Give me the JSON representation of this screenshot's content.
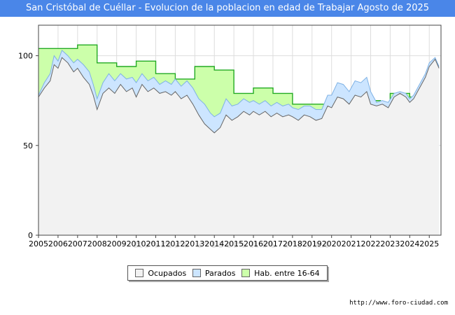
{
  "chart_data": {
    "type": "area",
    "title": "San Cristóbal de Cuéllar - Evolucion de la poblacion en edad de Trabajar Agosto de 2025",
    "xlabel": "",
    "ylabel": "",
    "x_ticks": [
      "2005",
      "2006",
      "2007",
      "2008",
      "2009",
      "2010",
      "2011",
      "2012",
      "2013",
      "2014",
      "2015",
      "2016",
      "2017",
      "2018",
      "2019",
      "2020",
      "2021",
      "2022",
      "2023",
      "2024",
      "2025"
    ],
    "y_ticks": [
      0,
      50,
      100
    ],
    "xlim": [
      2005,
      2025.6
    ],
    "ylim": [
      0,
      117
    ],
    "grid": true,
    "legend_position": "bottom-center",
    "series": [
      {
        "name": "Hab. entre 16-64",
        "style": "step",
        "color": "#ccffaa",
        "points": [
          [
            2005.0,
            104
          ],
          [
            2006.0,
            104
          ],
          [
            2007.0,
            106
          ],
          [
            2008.0,
            96
          ],
          [
            2009.0,
            94
          ],
          [
            2010.0,
            97
          ],
          [
            2011.0,
            90
          ],
          [
            2012.0,
            87
          ],
          [
            2013.0,
            94
          ],
          [
            2014.0,
            92
          ],
          [
            2015.0,
            79
          ],
          [
            2016.0,
            82
          ],
          [
            2017.0,
            79
          ],
          [
            2018.0,
            73
          ],
          [
            2019.0,
            73
          ],
          [
            2020.0,
            73
          ],
          [
            2021.0,
            73
          ],
          [
            2022.0,
            75
          ],
          [
            2022.5,
            74
          ],
          [
            2023.0,
            79
          ],
          [
            2024.0,
            77
          ],
          [
            2024.3,
            77
          ]
        ]
      },
      {
        "name": "Parados",
        "style": "line",
        "color": "#cce5ff",
        "points": [
          [
            2005.0,
            78
          ],
          [
            2005.3,
            85
          ],
          [
            2005.6,
            90
          ],
          [
            2005.8,
            100
          ],
          [
            2006.0,
            97
          ],
          [
            2006.2,
            103
          ],
          [
            2006.5,
            100
          ],
          [
            2006.8,
            96
          ],
          [
            2007.0,
            98
          ],
          [
            2007.3,
            95
          ],
          [
            2007.6,
            91
          ],
          [
            2007.8,
            84
          ],
          [
            2008.0,
            76
          ],
          [
            2008.3,
            85
          ],
          [
            2008.6,
            90
          ],
          [
            2008.9,
            86
          ],
          [
            2009.2,
            90
          ],
          [
            2009.5,
            87
          ],
          [
            2009.8,
            88
          ],
          [
            2010.0,
            85
          ],
          [
            2010.3,
            90
          ],
          [
            2010.6,
            86
          ],
          [
            2010.9,
            88
          ],
          [
            2011.2,
            84
          ],
          [
            2011.5,
            86
          ],
          [
            2011.8,
            84
          ],
          [
            2012.0,
            87
          ],
          [
            2012.3,
            83
          ],
          [
            2012.6,
            86
          ],
          [
            2012.9,
            82
          ],
          [
            2013.2,
            76
          ],
          [
            2013.5,
            73
          ],
          [
            2013.8,
            68
          ],
          [
            2014.0,
            66
          ],
          [
            2014.3,
            68
          ],
          [
            2014.6,
            76
          ],
          [
            2014.9,
            72
          ],
          [
            2015.2,
            73
          ],
          [
            2015.5,
            76
          ],
          [
            2015.8,
            74
          ],
          [
            2016.0,
            75
          ],
          [
            2016.3,
            73
          ],
          [
            2016.6,
            75
          ],
          [
            2016.9,
            72
          ],
          [
            2017.2,
            74
          ],
          [
            2017.5,
            72
          ],
          [
            2017.8,
            73
          ],
          [
            2018.0,
            71
          ],
          [
            2018.3,
            70
          ],
          [
            2018.6,
            72
          ],
          [
            2018.9,
            72
          ],
          [
            2019.2,
            70
          ],
          [
            2019.5,
            70
          ],
          [
            2019.8,
            78
          ],
          [
            2020.0,
            78
          ],
          [
            2020.3,
            85
          ],
          [
            2020.6,
            84
          ],
          [
            2020.9,
            80
          ],
          [
            2021.2,
            86
          ],
          [
            2021.5,
            85
          ],
          [
            2021.8,
            88
          ],
          [
            2022.0,
            80
          ],
          [
            2022.3,
            74
          ],
          [
            2022.6,
            75
          ],
          [
            2022.9,
            74
          ],
          [
            2023.2,
            79
          ],
          [
            2023.5,
            80
          ],
          [
            2023.8,
            79
          ],
          [
            2024.0,
            76
          ],
          [
            2024.2,
            78
          ],
          [
            2024.5,
            84
          ],
          [
            2024.8,
            90
          ],
          [
            2025.0,
            96
          ],
          [
            2025.3,
            99
          ],
          [
            2025.5,
            94
          ]
        ]
      },
      {
        "name": "Ocupados",
        "style": "line",
        "color": "#f2f2f2",
        "points": [
          [
            2005.0,
            77
          ],
          [
            2005.3,
            82
          ],
          [
            2005.6,
            86
          ],
          [
            2005.8,
            95
          ],
          [
            2006.0,
            93
          ],
          [
            2006.2,
            99
          ],
          [
            2006.5,
            96
          ],
          [
            2006.8,
            91
          ],
          [
            2007.0,
            93
          ],
          [
            2007.3,
            88
          ],
          [
            2007.6,
            84
          ],
          [
            2007.8,
            78
          ],
          [
            2008.0,
            70
          ],
          [
            2008.3,
            79
          ],
          [
            2008.6,
            82
          ],
          [
            2008.9,
            79
          ],
          [
            2009.2,
            84
          ],
          [
            2009.5,
            80
          ],
          [
            2009.8,
            82
          ],
          [
            2010.0,
            77
          ],
          [
            2010.3,
            84
          ],
          [
            2010.6,
            80
          ],
          [
            2010.9,
            82
          ],
          [
            2011.2,
            79
          ],
          [
            2011.5,
            80
          ],
          [
            2011.8,
            78
          ],
          [
            2012.0,
            80
          ],
          [
            2012.3,
            76
          ],
          [
            2012.6,
            78
          ],
          [
            2012.9,
            73
          ],
          [
            2013.2,
            67
          ],
          [
            2013.5,
            62
          ],
          [
            2013.8,
            59
          ],
          [
            2014.0,
            57
          ],
          [
            2014.3,
            60
          ],
          [
            2014.6,
            67
          ],
          [
            2014.9,
            64
          ],
          [
            2015.2,
            66
          ],
          [
            2015.5,
            69
          ],
          [
            2015.8,
            67
          ],
          [
            2016.0,
            69
          ],
          [
            2016.3,
            67
          ],
          [
            2016.6,
            69
          ],
          [
            2016.9,
            66
          ],
          [
            2017.2,
            68
          ],
          [
            2017.5,
            66
          ],
          [
            2017.8,
            67
          ],
          [
            2018.0,
            66
          ],
          [
            2018.3,
            64
          ],
          [
            2018.6,
            67
          ],
          [
            2018.9,
            66
          ],
          [
            2019.2,
            64
          ],
          [
            2019.5,
            65
          ],
          [
            2019.8,
            72
          ],
          [
            2020.0,
            71
          ],
          [
            2020.3,
            77
          ],
          [
            2020.6,
            76
          ],
          [
            2020.9,
            73
          ],
          [
            2021.2,
            78
          ],
          [
            2021.5,
            77
          ],
          [
            2021.8,
            80
          ],
          [
            2022.0,
            73
          ],
          [
            2022.3,
            72
          ],
          [
            2022.6,
            73
          ],
          [
            2022.9,
            71
          ],
          [
            2023.2,
            77
          ],
          [
            2023.5,
            79
          ],
          [
            2023.8,
            77
          ],
          [
            2024.0,
            74
          ],
          [
            2024.2,
            76
          ],
          [
            2024.5,
            82
          ],
          [
            2024.8,
            88
          ],
          [
            2025.0,
            94
          ],
          [
            2025.3,
            98
          ],
          [
            2025.5,
            93
          ]
        ]
      }
    ]
  },
  "legend": {
    "items": [
      {
        "label": "Ocupados",
        "color": "#f2f2f2"
      },
      {
        "label": "Parados",
        "color": "#cce5ff"
      },
      {
        "label": "Hab. entre 16-64",
        "color": "#ccffaa"
      }
    ]
  },
  "watermark": "FORO-CIUDAD.COM",
  "source_url": "http://www.foro-ciudad.com"
}
